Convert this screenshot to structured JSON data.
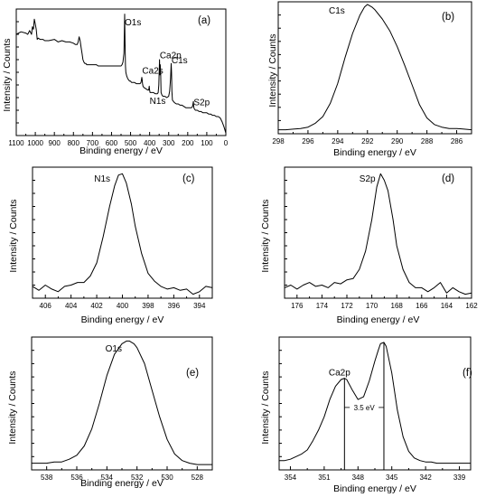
{
  "figure": {
    "panels": [
      {
        "id": "a",
        "panel_label": "(a)",
        "xlabel": "Binding energy / eV",
        "ylabel": "Intensity / Counts",
        "xticks": [
          1100,
          1000,
          900,
          800,
          700,
          600,
          500,
          400,
          300,
          200,
          100,
          0
        ],
        "peak_labels": [
          {
            "text": "O1s",
            "x": 531,
            "y": 0.87
          },
          {
            "text": "Ca2p",
            "x": 347,
            "y": 0.61
          },
          {
            "text": "Ca2s",
            "x": 439,
            "y": 0.49
          },
          {
            "text": "C1s",
            "x": 285,
            "y": 0.57
          },
          {
            "text": "N1s",
            "x": 400,
            "y": 0.25
          },
          {
            "text": "S2p",
            "x": 169,
            "y": 0.24
          }
        ]
      },
      {
        "id": "b",
        "panel_label": "(b)",
        "xlabel": "Binding energy / eV",
        "ylabel": "Intensity / Counts",
        "xticks": [
          298,
          296,
          294,
          292,
          290,
          288,
          286
        ],
        "peak_labels": [
          {
            "text": "C1s",
            "x": 294.6,
            "y": 0.91
          }
        ]
      },
      {
        "id": "c",
        "panel_label": "(c)",
        "xlabel": "Binding energy / eV",
        "ylabel": "Intensity / Counts",
        "xticks": [
          406,
          404,
          402,
          400,
          398,
          396,
          394
        ],
        "peak_labels": [
          {
            "text": "N1s",
            "x": 402.2,
            "y": 0.89
          }
        ]
      },
      {
        "id": "d",
        "panel_label": "(d)",
        "xlabel": "Binding energy / eV",
        "ylabel": "Intensity / Counts",
        "xticks": [
          176,
          174,
          172,
          170,
          168,
          166,
          164,
          162
        ],
        "peak_labels": [
          {
            "text": "S2p",
            "x": 171,
            "y": 0.89
          }
        ]
      },
      {
        "id": "e",
        "panel_label": "(e)",
        "xlabel": "Binding energy / eV",
        "ylabel": "Intensity / Counts",
        "xticks": [
          538,
          536,
          534,
          532,
          530,
          528
        ],
        "peak_labels": [
          {
            "text": "O1s",
            "x": 534.1,
            "y": 0.89
          }
        ]
      },
      {
        "id": "f",
        "panel_label": "(f)",
        "xlabel": "Binding energy / eV",
        "ylabel": "Intensity / Counts",
        "xticks": [
          354,
          351,
          348,
          345,
          342,
          339
        ],
        "peak_labels": [
          {
            "text": "Ca2p",
            "x": 350.6,
            "y": 0.71
          }
        ],
        "annotation": {
          "text": "3.5 eV",
          "x1": 349.2,
          "x2": 345.7,
          "y": 0.47
        }
      }
    ]
  },
  "chart_data": [
    {
      "type": "line",
      "panel": "a",
      "xlim": [
        1100,
        0
      ],
      "ylim": [
        0,
        1
      ],
      "xlabel": "Binding energy / eV",
      "ylabel": "Intensity / Counts",
      "x": [
        1100,
        1075,
        1050,
        1040,
        1030,
        1020,
        1015,
        1010,
        1005,
        1000,
        995,
        990,
        985,
        975,
        960,
        950,
        930,
        900,
        880,
        860,
        840,
        820,
        800,
        790,
        780,
        775,
        770,
        765,
        760,
        755,
        750,
        745,
        740,
        735,
        730,
        725,
        720,
        710,
        700,
        690,
        680,
        670,
        660,
        650,
        640,
        630,
        620,
        610,
        600,
        590,
        580,
        570,
        560,
        550,
        545,
        540,
        535,
        533,
        531,
        529,
        527,
        525,
        520,
        515,
        510,
        505,
        500,
        495,
        490,
        485,
        480,
        470,
        460,
        450,
        445,
        441,
        439,
        437,
        435,
        430,
        420,
        410,
        405,
        402,
        400,
        398,
        395,
        390,
        380,
        370,
        360,
        355,
        352,
        350,
        348,
        347,
        346,
        344,
        342,
        340,
        335,
        330,
        320,
        310,
        300,
        295,
        290,
        287,
        285,
        283,
        280,
        275,
        270,
        260,
        250,
        240,
        230,
        220,
        210,
        200,
        190,
        180,
        175,
        170,
        169,
        168,
        165,
        160,
        150,
        140,
        130,
        120,
        110,
        100,
        90,
        80,
        70,
        60,
        50,
        40,
        30,
        20,
        10,
        0
      ],
      "y": [
        0.8,
        0.82,
        0.81,
        0.8,
        0.83,
        0.8,
        0.86,
        0.84,
        0.92,
        0.88,
        0.84,
        0.76,
        0.77,
        0.76,
        0.76,
        0.75,
        0.75,
        0.76,
        0.74,
        0.75,
        0.74,
        0.74,
        0.73,
        0.72,
        0.72,
        0.74,
        0.78,
        0.75,
        0.7,
        0.65,
        0.6,
        0.58,
        0.57,
        0.57,
        0.56,
        0.56,
        0.56,
        0.56,
        0.56,
        0.56,
        0.56,
        0.55,
        0.55,
        0.55,
        0.55,
        0.55,
        0.55,
        0.55,
        0.55,
        0.55,
        0.55,
        0.55,
        0.55,
        0.55,
        0.56,
        0.58,
        0.65,
        0.8,
        0.96,
        0.75,
        0.55,
        0.5,
        0.47,
        0.45,
        0.44,
        0.43,
        0.43,
        0.42,
        0.42,
        0.42,
        0.42,
        0.41,
        0.41,
        0.41,
        0.42,
        0.46,
        0.44,
        0.41,
        0.39,
        0.38,
        0.37,
        0.36,
        0.36,
        0.39,
        0.36,
        0.34,
        0.34,
        0.34,
        0.34,
        0.33,
        0.33,
        0.34,
        0.4,
        0.5,
        0.6,
        0.53,
        0.48,
        0.56,
        0.48,
        0.34,
        0.32,
        0.31,
        0.31,
        0.3,
        0.31,
        0.35,
        0.45,
        0.57,
        0.5,
        0.35,
        0.28,
        0.27,
        0.26,
        0.25,
        0.25,
        0.24,
        0.24,
        0.23,
        0.22,
        0.22,
        0.22,
        0.22,
        0.23,
        0.27,
        0.23,
        0.22,
        0.21,
        0.2,
        0.2,
        0.19,
        0.19,
        0.18,
        0.18,
        0.18,
        0.17,
        0.17,
        0.16,
        0.16,
        0.15,
        0.15,
        0.14,
        0.11,
        0.07,
        0.02
      ]
    },
    {
      "type": "line",
      "panel": "b",
      "xlim": [
        298,
        285
      ],
      "ylim": [
        0,
        1
      ],
      "xlabel": "Binding energy / eV",
      "ylabel": "Intensity / Counts",
      "x": [
        298,
        297.5,
        297,
        296.5,
        296,
        295.5,
        295,
        294.5,
        294,
        293.5,
        293,
        292.5,
        292.2,
        292,
        291.7,
        291.5,
        291,
        290.5,
        290,
        289.5,
        289,
        288.5,
        288,
        287.5,
        287,
        286.5,
        286,
        285.5,
        285
      ],
      "y": [
        0.03,
        0.03,
        0.035,
        0.04,
        0.05,
        0.08,
        0.13,
        0.23,
        0.38,
        0.58,
        0.76,
        0.9,
        0.96,
        0.98,
        0.96,
        0.94,
        0.87,
        0.78,
        0.66,
        0.52,
        0.37,
        0.22,
        0.12,
        0.07,
        0.05,
        0.04,
        0.04,
        0.035,
        0.03
      ]
    },
    {
      "type": "line",
      "panel": "c",
      "xlim": [
        407,
        393
      ],
      "ylim": [
        0,
        1
      ],
      "xlabel": "Binding energy / eV",
      "ylabel": "Intensity / Counts",
      "x": [
        407,
        406.5,
        406,
        405.5,
        405,
        404.5,
        404,
        403.5,
        403,
        402.5,
        402,
        401.5,
        401,
        400.6,
        400.3,
        400,
        399.7,
        399.3,
        399,
        398.5,
        398,
        397.5,
        397,
        396.5,
        396,
        395.5,
        395,
        394.5,
        394,
        393.5,
        393
      ],
      "y": [
        0.09,
        0.06,
        0.1,
        0.07,
        0.05,
        0.09,
        0.1,
        0.12,
        0.12,
        0.17,
        0.27,
        0.47,
        0.7,
        0.86,
        0.94,
        0.95,
        0.88,
        0.72,
        0.55,
        0.34,
        0.19,
        0.13,
        0.09,
        0.07,
        0.08,
        0.06,
        0.07,
        0.03,
        0.05,
        0.09,
        0.08
      ]
    },
    {
      "type": "line",
      "panel": "d",
      "xlim": [
        177,
        162
      ],
      "ylim": [
        0,
        1
      ],
      "xlabel": "Binding energy / eV",
      "ylabel": "Intensity / Counts",
      "x": [
        177,
        176.5,
        176,
        175.5,
        175,
        174.5,
        174,
        173.5,
        173,
        172.5,
        172,
        171.5,
        171,
        170.5,
        170,
        169.6,
        169.3,
        169,
        168.7,
        168.3,
        168,
        167.5,
        167,
        166.5,
        166,
        165.5,
        165,
        164.5,
        164,
        163.5,
        163,
        162.5,
        162
      ],
      "y": [
        0.08,
        0.1,
        0.07,
        0.1,
        0.12,
        0.09,
        0.1,
        0.08,
        0.12,
        0.11,
        0.14,
        0.15,
        0.22,
        0.36,
        0.6,
        0.85,
        0.95,
        0.9,
        0.82,
        0.6,
        0.4,
        0.22,
        0.12,
        0.08,
        0.08,
        0.05,
        0.08,
        0.12,
        0.04,
        0.08,
        0.05,
        0.03,
        0.04
      ]
    },
    {
      "type": "line",
      "panel": "e",
      "xlim": [
        539,
        527
      ],
      "ylim": [
        0,
        1
      ],
      "xlabel": "Binding energy / eV",
      "ylabel": "Intensity / Counts",
      "x": [
        539,
        538.5,
        538,
        537.5,
        537,
        536.5,
        536,
        535.5,
        535,
        534.5,
        534,
        533.5,
        533,
        532.7,
        532.5,
        532.2,
        532,
        531.5,
        531,
        530.5,
        530,
        529.5,
        529,
        528.5,
        528,
        527.5,
        527
      ],
      "y": [
        0.05,
        0.05,
        0.05,
        0.06,
        0.06,
        0.08,
        0.11,
        0.18,
        0.31,
        0.5,
        0.71,
        0.87,
        0.95,
        0.97,
        0.97,
        0.95,
        0.92,
        0.8,
        0.6,
        0.4,
        0.23,
        0.12,
        0.07,
        0.05,
        0.04,
        0.04,
        0.04
      ]
    },
    {
      "type": "line",
      "panel": "f",
      "xlim": [
        355,
        338
      ],
      "ylim": [
        0,
        1
      ],
      "xlabel": "Binding energy / eV",
      "ylabel": "Intensity / Counts",
      "x": [
        355,
        354.5,
        354,
        353.5,
        353,
        352.5,
        352,
        351.5,
        351,
        350.5,
        350,
        349.5,
        349.2,
        349,
        348.5,
        348,
        347.5,
        347,
        346.5,
        346.2,
        346,
        345.7,
        345.5,
        345,
        344.5,
        344,
        343.5,
        343,
        342.5,
        342,
        341.5,
        341,
        340.5,
        340,
        339.5,
        339,
        338.5,
        338
      ],
      "y": [
        0.07,
        0.07,
        0.08,
        0.1,
        0.12,
        0.15,
        0.22,
        0.3,
        0.4,
        0.53,
        0.63,
        0.68,
        0.69,
        0.68,
        0.6,
        0.53,
        0.55,
        0.67,
        0.82,
        0.9,
        0.95,
        0.96,
        0.93,
        0.73,
        0.45,
        0.25,
        0.14,
        0.09,
        0.07,
        0.06,
        0.06,
        0.05,
        0.05,
        0.05,
        0.05,
        0.05,
        0.05,
        0.05
      ]
    }
  ]
}
